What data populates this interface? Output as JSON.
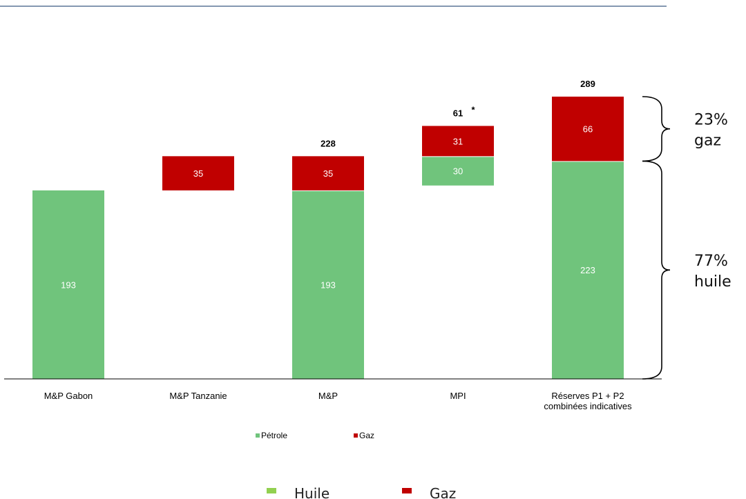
{
  "chart_data": {
    "type": "bar",
    "categories": [
      "M&P Gabon",
      "M&P Tanzanie",
      "M&P",
      "MPI",
      "Réserves P1 + P2 combinées indicatives"
    ],
    "series": [
      {
        "name": "Pétrole",
        "values": [
          193,
          null,
          193,
          30,
          223
        ]
      },
      {
        "name": "Gaz",
        "values": [
          null,
          35,
          35,
          31,
          66
        ]
      }
    ],
    "bases": [
      0,
      193,
      0,
      198,
      0
    ],
    "totals": [
      null,
      null,
      "228",
      "61",
      "289"
    ],
    "total_marks": [
      null,
      null,
      null,
      "*",
      null
    ],
    "category_lines": [
      [
        "M&P Gabon"
      ],
      [
        "M&P Tanzanie"
      ],
      [
        "M&P"
      ],
      [
        "MPI"
      ],
      [
        "Réserves P1 + P2",
        "combinées indicatives"
      ]
    ],
    "ylim": [
      0,
      300
    ],
    "legend": {
      "position": "bottom",
      "items": [
        {
          "label": "Pétrole",
          "color": "#70c47c"
        },
        {
          "label": "Gaz",
          "color": "#c00000"
        }
      ]
    },
    "brackets": [
      {
        "line1": "23%",
        "line2": "gaz",
        "from": 223,
        "to": 289
      },
      {
        "line1": "77%",
        "line2": "huile",
        "from": 0,
        "to": 223
      }
    ],
    "colors": {
      "oil": "#70c47c",
      "gas": "#c00000",
      "top_rule": "#8497b0"
    }
  },
  "bottom_legend": {
    "items": [
      {
        "label": "Huile",
        "color": "#92d050"
      },
      {
        "label": "Gaz",
        "color": "#c00000"
      }
    ]
  }
}
